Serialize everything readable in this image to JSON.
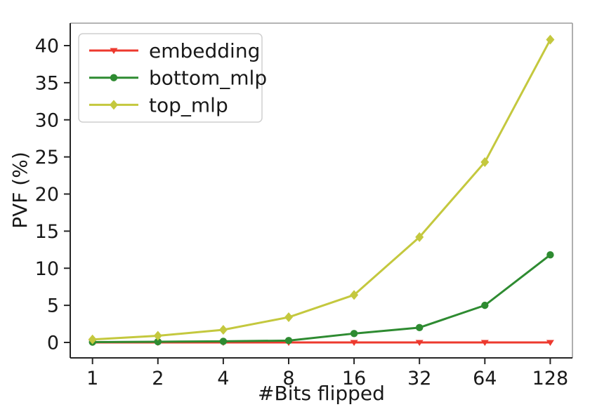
{
  "figure": {
    "background": "#ffffff"
  },
  "chart_data": {
    "type": "line",
    "title": "",
    "xlabel": "#Bits flipped",
    "ylabel": "PVF (%)",
    "x_scale": "log2",
    "x_ticks": [
      1,
      2,
      4,
      8,
      16,
      32,
      64,
      128
    ],
    "y_ticks": [
      0,
      5,
      10,
      15,
      20,
      25,
      30,
      35,
      40
    ],
    "ylim": [
      -2,
      43
    ],
    "grid": false,
    "legend_position": "upper-left",
    "series": [
      {
        "name": "embedding",
        "color": "#ed392e",
        "marker": "tri-down",
        "values": [
          0,
          0,
          0,
          0,
          0,
          0,
          0,
          0
        ]
      },
      {
        "name": "bottom_mlp",
        "color": "#2e8b31",
        "marker": "circle",
        "values": [
          0.05,
          0.1,
          0.15,
          0.25,
          1.2,
          2.0,
          5.0,
          11.8
        ]
      },
      {
        "name": "top_mlp",
        "color": "#c4c83e",
        "marker": "diamond",
        "values": [
          0.4,
          0.9,
          1.7,
          3.4,
          6.4,
          14.2,
          24.3,
          40.8
        ]
      }
    ]
  }
}
